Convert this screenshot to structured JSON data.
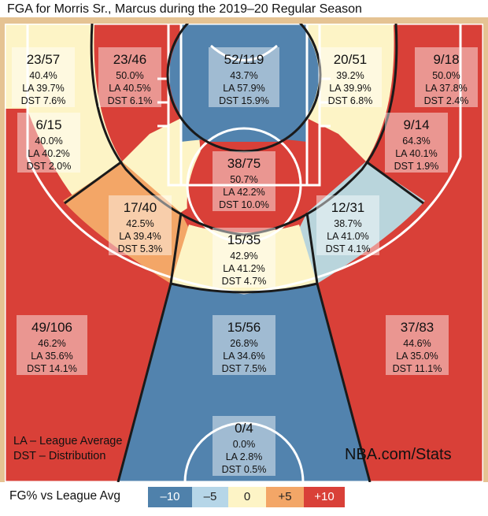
{
  "title": "FGA for Morris Sr., Marcus during the 2019–20 Regular Season",
  "legend_lines": [
    "LA – League Average",
    "DST – Distribution"
  ],
  "brand": "NBA.com/Stats",
  "scale": {
    "title": "FG% vs League Avg",
    "items": [
      {
        "label": "–10",
        "color": "#4f81ab",
        "text_color": "#ffffff"
      },
      {
        "label": "–5",
        "color": "#b6d6e8",
        "text_color": "#222222"
      },
      {
        "label": "0",
        "color": "#fdf4c6",
        "text_color": "#222222"
      },
      {
        "label": "+5",
        "color": "#f3a667",
        "text_color": "#222222"
      },
      {
        "label": "+10",
        "color": "#d94038",
        "text_color": "#ffffff"
      }
    ]
  },
  "colors": {
    "hot": "#d94038",
    "cold": "#5283ae",
    "neutral": "#fdf4c6",
    "warm": "#f3a667",
    "cool": "#b9d5dc",
    "court": "#e5c393"
  },
  "chart_data": {
    "type": "heatmap",
    "title": "FGA for Morris Sr., Marcus during the 2019–20 Regular Season",
    "value_format": "FGM/FGA, FG%, League Average FG%, Distribution of attempts",
    "zones": [
      {
        "id": "left-corner-3",
        "fgm": 23,
        "fga": 57,
        "label": "23/57",
        "fg_pct": "40.4%",
        "la": "LA 39.7%",
        "dst": "DST 7.6%",
        "rating": "neutral"
      },
      {
        "id": "left-baseline-mid",
        "fgm": 23,
        "fga": 46,
        "label": "23/46",
        "fg_pct": "50.0%",
        "la": "LA 40.5%",
        "dst": "DST 6.1%",
        "rating": "hot"
      },
      {
        "id": "paint-non-ra",
        "fgm": 52,
        "fga": 119,
        "label": "52/119",
        "fg_pct": "43.7%",
        "la": "LA 57.9%",
        "dst": "DST 15.9%",
        "rating": "cold"
      },
      {
        "id": "right-baseline-mid",
        "fgm": 20,
        "fga": 51,
        "label": "20/51",
        "fg_pct": "39.2%",
        "la": "LA 39.9%",
        "dst": "DST 6.8%",
        "rating": "neutral"
      },
      {
        "id": "right-corner-3",
        "fgm": 9,
        "fga": 18,
        "label": "9/18",
        "fg_pct": "50.0%",
        "la": "LA 37.8%",
        "dst": "DST 2.4%",
        "rating": "hot"
      },
      {
        "id": "left-wing-mid",
        "fgm": 6,
        "fga": 15,
        "label": "6/15",
        "fg_pct": "40.0%",
        "la": "LA 40.2%",
        "dst": "DST 2.0%",
        "rating": "neutral"
      },
      {
        "id": "restricted-area",
        "fgm": 38,
        "fga": 75,
        "label": "38/75",
        "fg_pct": "50.7%",
        "la": "LA 42.2%",
        "dst": "DST 10.0%",
        "rating": "hot"
      },
      {
        "id": "right-wing-mid",
        "fgm": 9,
        "fga": 14,
        "label": "9/14",
        "fg_pct": "64.3%",
        "la": "LA 40.1%",
        "dst": "DST 1.9%",
        "rating": "hot"
      },
      {
        "id": "left-elbow-mid",
        "fgm": 17,
        "fga": 40,
        "label": "17/40",
        "fg_pct": "42.5%",
        "la": "LA 39.4%",
        "dst": "DST 5.3%",
        "rating": "warm"
      },
      {
        "id": "right-elbow-mid",
        "fgm": 12,
        "fga": 31,
        "label": "12/31",
        "fg_pct": "38.7%",
        "la": "LA 41.0%",
        "dst": "DST 4.1%",
        "rating": "cool"
      },
      {
        "id": "top-key-mid",
        "fgm": 15,
        "fga": 35,
        "label": "15/35",
        "fg_pct": "42.9%",
        "la": "LA 41.2%",
        "dst": "DST 4.7%",
        "rating": "neutral"
      },
      {
        "id": "left-wing-3",
        "fgm": 49,
        "fga": 106,
        "label": "49/106",
        "fg_pct": "46.2%",
        "la": "LA 35.6%",
        "dst": "DST 14.1%",
        "rating": "hot"
      },
      {
        "id": "top-key-3",
        "fgm": 15,
        "fga": 56,
        "label": "15/56",
        "fg_pct": "26.8%",
        "la": "LA 34.6%",
        "dst": "DST 7.5%",
        "rating": "cold"
      },
      {
        "id": "right-wing-3",
        "fgm": 37,
        "fga": 83,
        "label": "37/83",
        "fg_pct": "44.6%",
        "la": "LA 35.0%",
        "dst": "DST 11.1%",
        "rating": "hot"
      },
      {
        "id": "backcourt",
        "fgm": 0,
        "fga": 4,
        "label": "0/4",
        "fg_pct": "0.0%",
        "la": "LA 2.8%",
        "dst": "DST 0.5%",
        "rating": "cold"
      }
    ]
  }
}
